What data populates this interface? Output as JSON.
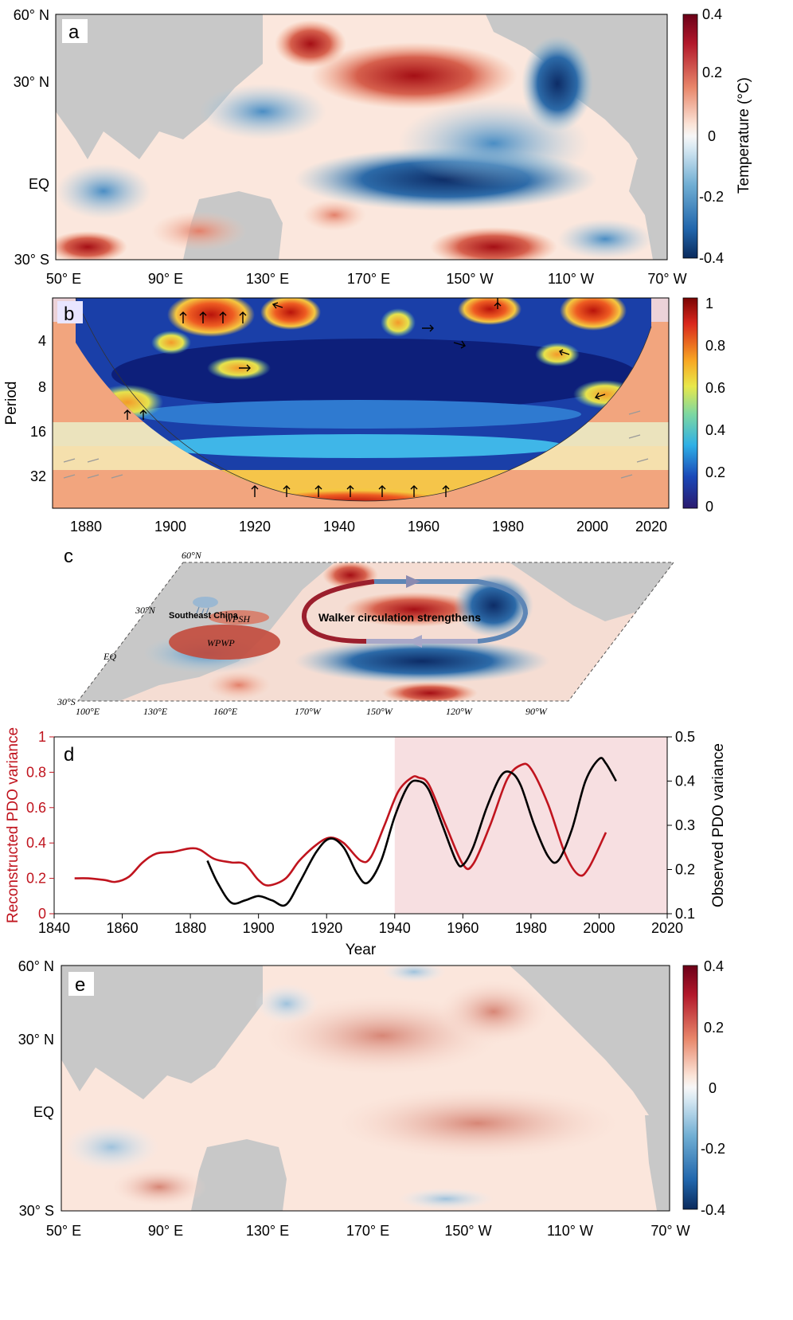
{
  "panels": {
    "a": {
      "label": "a",
      "lat_ticks": [
        "60° N",
        "30° N",
        "EQ",
        "30° S"
      ],
      "lon_ticks": [
        "50° E",
        "90° E",
        "130° E",
        "170° E",
        "150° W",
        "110° W",
        "70° W"
      ],
      "colorbar": {
        "ticks": [
          "0.4",
          "0.2",
          "0",
          "-0.2",
          "-0.4"
        ],
        "title": "Temperature (°C)"
      }
    },
    "b": {
      "label": "b",
      "ylabel": "Period",
      "period_ticks": [
        "4",
        "8",
        "16",
        "32"
      ],
      "year_ticks": [
        "1880",
        "1900",
        "1920",
        "1940",
        "1960",
        "1980",
        "2000",
        "2020"
      ],
      "colorbar": {
        "ticks": [
          "1",
          "0.8",
          "0.6",
          "0.4",
          "0.2",
          "0"
        ]
      }
    },
    "c": {
      "label": "c",
      "lat_ticks": [
        "60°N",
        "30°N",
        "EQ",
        "30°S"
      ],
      "lon_ticks": [
        "100°E",
        "130°E",
        "160°E",
        "170°W",
        "150°W",
        "120°W",
        "90°W"
      ],
      "region_label": "Southeast China",
      "wpsh_label": "WPSH",
      "wpwp_label": "WPWP",
      "circulation_text": "Walker circulation strengthens"
    },
    "d": {
      "label": "d"
    },
    "e": {
      "label": "e",
      "lat_ticks": [
        "60° N",
        "30° N",
        "EQ",
        "30° S"
      ],
      "lon_ticks": [
        "50° E",
        "90° E",
        "130° E",
        "170° E",
        "150° W",
        "110° W",
        "70° W"
      ],
      "colorbar": {
        "ticks": [
          "0.4",
          "0.2",
          "0",
          "-0.2",
          "-0.4"
        ]
      }
    }
  },
  "colors": {
    "red_series": "#c0141e",
    "black_series": "#000000",
    "shade": "#f7dfe1",
    "land": "#c8c8c8"
  },
  "chart_data": {
    "type": "line",
    "title": "",
    "xlabel": "Year",
    "ylabel_left": "Reconstructed PDO variance",
    "ylabel_right": "Observed PDO variance",
    "xlim": [
      1840,
      2020
    ],
    "ylim_left": [
      0,
      1
    ],
    "ylim_right": [
      0.1,
      0.5
    ],
    "x_ticks": [
      "1840",
      "1860",
      "1880",
      "1900",
      "1920",
      "1940",
      "1960",
      "1980",
      "2000",
      "2020"
    ],
    "y_left_ticks": [
      "0",
      "0.2",
      "0.4",
      "0.6",
      "0.8",
      "1"
    ],
    "y_right_ticks": [
      "0.1",
      "0.2",
      "0.3",
      "0.4",
      "0.5"
    ],
    "shaded_interval": [
      1940,
      2020
    ],
    "series": [
      {
        "name": "Reconstructed PDO variance",
        "axis": "left",
        "x": [
          1846,
          1850,
          1855,
          1858,
          1862,
          1866,
          1870,
          1875,
          1880,
          1883,
          1887,
          1892,
          1896,
          1900,
          1903,
          1908,
          1912,
          1917,
          1921,
          1925,
          1930,
          1933,
          1937,
          1941,
          1945,
          1947,
          1950,
          1955,
          1960,
          1963,
          1968,
          1973,
          1977,
          1980,
          1985,
          1990,
          1994,
          1997,
          2002
        ],
        "y": [
          0.2,
          0.2,
          0.19,
          0.18,
          0.21,
          0.29,
          0.34,
          0.35,
          0.37,
          0.36,
          0.31,
          0.29,
          0.28,
          0.19,
          0.16,
          0.2,
          0.3,
          0.39,
          0.43,
          0.4,
          0.3,
          0.32,
          0.5,
          0.69,
          0.77,
          0.77,
          0.73,
          0.5,
          0.28,
          0.28,
          0.5,
          0.76,
          0.84,
          0.82,
          0.62,
          0.34,
          0.22,
          0.26,
          0.46
        ]
      },
      {
        "name": "Observed PDO variance",
        "axis": "right",
        "x": [
          1885,
          1888,
          1892,
          1896,
          1900,
          1904,
          1908,
          1912,
          1917,
          1921,
          1925,
          1929,
          1932,
          1936,
          1940,
          1944,
          1947,
          1950,
          1954,
          1958,
          1960,
          1963,
          1967,
          1971,
          1974,
          1977,
          1981,
          1985,
          1988,
          1992,
          1996,
          2000,
          2002,
          2005
        ],
        "y": [
          0.22,
          0.17,
          0.125,
          0.13,
          0.14,
          0.13,
          0.12,
          0.17,
          0.24,
          0.27,
          0.25,
          0.19,
          0.17,
          0.22,
          0.32,
          0.39,
          0.4,
          0.38,
          0.3,
          0.22,
          0.21,
          0.25,
          0.34,
          0.41,
          0.42,
          0.39,
          0.3,
          0.23,
          0.22,
          0.29,
          0.4,
          0.45,
          0.44,
          0.4
        ]
      }
    ]
  }
}
